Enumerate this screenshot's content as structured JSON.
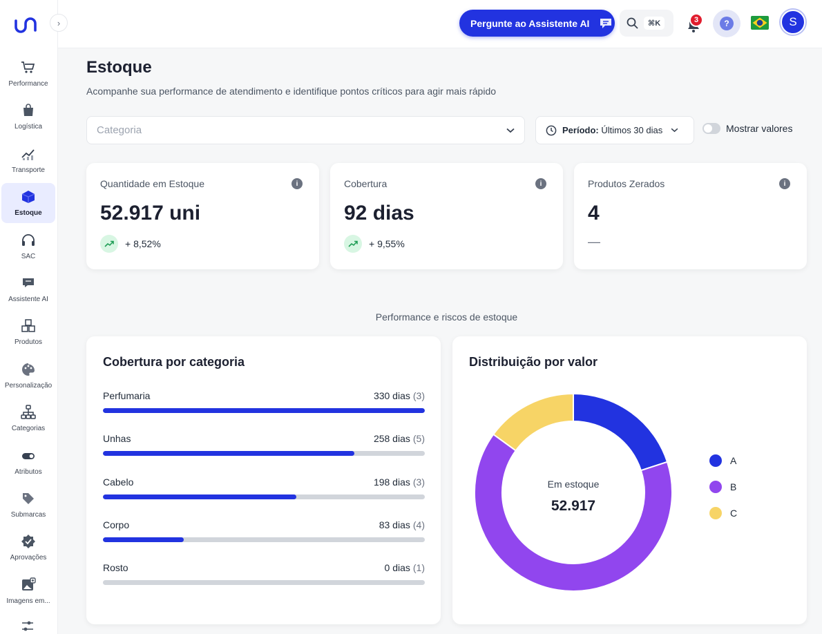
{
  "app": {
    "logo_text": "un"
  },
  "sidebar": {
    "items": [
      {
        "label": "Performance",
        "icon": "cart-icon"
      },
      {
        "label": "Logística",
        "icon": "bag-icon"
      },
      {
        "label": "Transporte",
        "icon": "chart-up-icon"
      },
      {
        "label": "Estoque",
        "icon": "box-icon",
        "active": true
      },
      {
        "label": "SAC",
        "icon": "headset-icon"
      },
      {
        "label": "Assistente AI",
        "icon": "chat-icon"
      },
      {
        "label": "Produtos",
        "icon": "boxes-icon"
      },
      {
        "label": "Personalização",
        "icon": "palette-icon"
      },
      {
        "label": "Categorias",
        "icon": "hierarchy-icon"
      },
      {
        "label": "Atributos",
        "icon": "toggle-icon"
      },
      {
        "label": "Submarcas",
        "icon": "tag-icon"
      },
      {
        "label": "Aprovações",
        "icon": "verified-icon"
      },
      {
        "label": "Imagens em...",
        "icon": "image-icon"
      }
    ]
  },
  "header": {
    "ai_button": "Pergunte ao Assistente AI",
    "shortcut": "⌘K",
    "notifications": "3",
    "help": "?",
    "avatar": "S"
  },
  "page": {
    "title": "Estoque",
    "subtitle": "Acompanhe sua performance de atendimento e identifique pontos críticos para agir mais rápido"
  },
  "filters": {
    "category_placeholder": "Categoria",
    "period_label": "Período:",
    "period_value": "Últimos 30 dias",
    "toggle_label": "Mostrar valores"
  },
  "kpis": [
    {
      "label": "Quantidade em Estoque",
      "value": "52.917 uni",
      "trend": "+ 8,52%"
    },
    {
      "label": "Cobertura",
      "value": "92 dias",
      "trend": "+ 9,55%"
    },
    {
      "label": "Produtos Zerados",
      "value": "4",
      "trend": "—"
    }
  ],
  "section_title": "Performance e riscos de estoque",
  "coverage": {
    "title": "Cobertura por categoria",
    "max": 330,
    "rows": [
      {
        "name": "Perfumaria",
        "value": "330 dias",
        "days": 330,
        "count": "(3)"
      },
      {
        "name": "Unhas",
        "value": "258 dias",
        "days": 258,
        "count": "(5)"
      },
      {
        "name": "Cabelo",
        "value": "198 dias",
        "days": 198,
        "count": "(3)"
      },
      {
        "name": "Corpo",
        "value": "83 dias",
        "days": 83,
        "count": "(4)"
      },
      {
        "name": "Rosto",
        "value": "0 dias",
        "days": 0,
        "count": "(1)"
      }
    ]
  },
  "distribution": {
    "title": "Distribuição por valor",
    "center_label": "Em estoque",
    "center_value": "52.917",
    "slices": [
      {
        "name": "A",
        "share": 0.2,
        "color": "#2233e0"
      },
      {
        "name": "B",
        "share": 0.65,
        "color": "#9146ee"
      },
      {
        "name": "C",
        "share": 0.15,
        "color": "#f7d466"
      }
    ]
  }
}
